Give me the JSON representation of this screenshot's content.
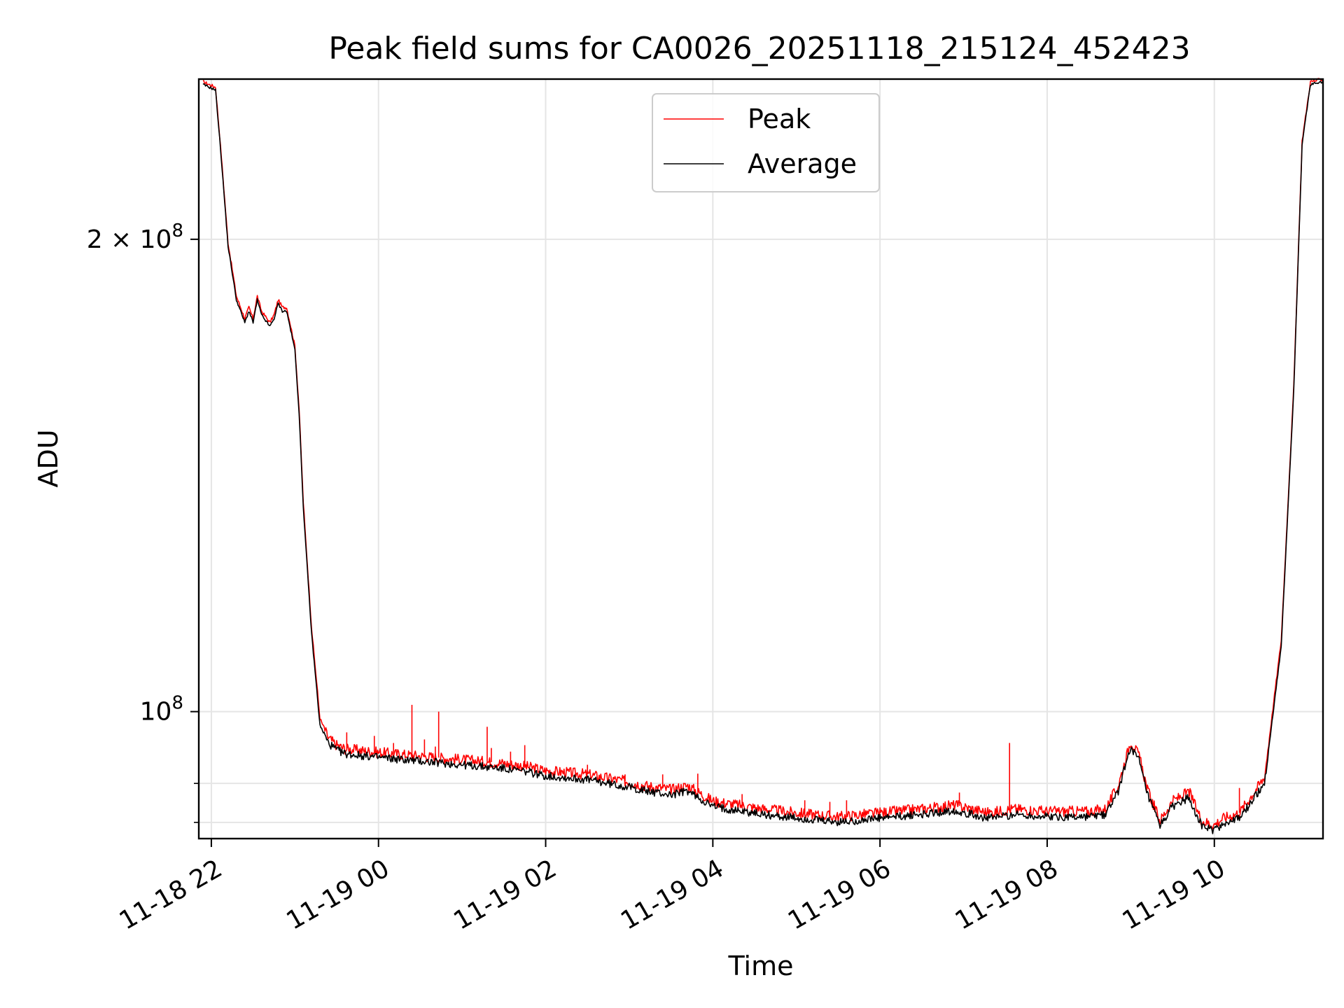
{
  "chart_data": {
    "type": "line",
    "title": "Peak field sums for CA0026_20251118_215124_452423",
    "xlabel": "Time",
    "ylabel": "ADU",
    "y_scale": "log",
    "xlim_hours": [
      -0.15,
      13.3
    ],
    "ylim": [
      83000000,
      253000000
    ],
    "x_ticks": [
      {
        "hour": 0,
        "label": "11-18 22"
      },
      {
        "hour": 2,
        "label": "11-19 00"
      },
      {
        "hour": 4,
        "label": "11-19 02"
      },
      {
        "hour": 6,
        "label": "11-19 04"
      },
      {
        "hour": 8,
        "label": "11-19 06"
      },
      {
        "hour": 10,
        "label": "11-19 08"
      },
      {
        "hour": 12,
        "label": "11-19 10"
      }
    ],
    "y_major_ticks": [
      {
        "value": 100000000,
        "base": "10",
        "exp": "8"
      },
      {
        "value": 200000000,
        "base": "2 × 10",
        "exp": "8"
      }
    ],
    "y_minor_ticks": [
      90000000,
      85000000
    ],
    "legend": {
      "position": "top-center",
      "entries": [
        "Peak",
        "Average"
      ]
    },
    "colors": {
      "peak": "#ff0000",
      "average": "#000000",
      "grid": "#e5e5e5"
    },
    "series": [
      {
        "name": "Average",
        "x_hours": [
          -0.1,
          0.05,
          0.12,
          0.2,
          0.3,
          0.4,
          0.45,
          0.5,
          0.55,
          0.6,
          0.7,
          0.75,
          0.8,
          0.85,
          0.9,
          0.95,
          1.0,
          1.05,
          1.1,
          1.2,
          1.3,
          1.4,
          1.5,
          1.6,
          2.0,
          2.5,
          3.0,
          3.5,
          3.8,
          4.0,
          4.5,
          5.0,
          5.2,
          5.5,
          5.7,
          6.0,
          6.3,
          6.6,
          7.0,
          7.5,
          8.0,
          8.5,
          8.9,
          9.3,
          9.6,
          10.0,
          10.5,
          10.7,
          10.85,
          11.0,
          11.1,
          11.2,
          11.35,
          11.5,
          11.7,
          11.85,
          12.0,
          12.1,
          12.3,
          12.6,
          12.8,
          12.95,
          13.05,
          13.15,
          13.3
        ],
        "values": [
          251000000,
          249000000,
          225000000,
          198000000,
          183000000,
          177000000,
          180000000,
          177000000,
          183000000,
          179000000,
          176000000,
          178000000,
          182000000,
          180000000,
          180000000,
          175000000,
          170000000,
          155000000,
          135000000,
          112000000,
          98000000,
          95500000,
          94500000,
          94000000,
          93500000,
          93000000,
          92500000,
          92000000,
          91500000,
          91000000,
          90500000,
          89500000,
          89000000,
          88500000,
          89000000,
          87000000,
          86500000,
          86000000,
          85500000,
          85000000,
          85500000,
          86000000,
          86500000,
          85500000,
          86000000,
          85700000,
          85700000,
          86000000,
          89000000,
          95000000,
          93000000,
          88500000,
          84500000,
          87000000,
          88200000,
          84500000,
          84000000,
          84800000,
          85500000,
          90000000,
          110000000,
          160000000,
          230000000,
          251000000,
          252000000
        ]
      },
      {
        "name": "Peak",
        "x_hours": [
          -0.1,
          0.05,
          0.12,
          0.2,
          0.3,
          0.4,
          0.45,
          0.5,
          0.55,
          0.6,
          0.7,
          0.75,
          0.8,
          0.85,
          0.9,
          0.95,
          1.0,
          1.05,
          1.1,
          1.2,
          1.3,
          1.4,
          1.5,
          1.6,
          2.0,
          2.5,
          3.0,
          3.5,
          3.8,
          4.0,
          4.5,
          5.0,
          5.2,
          5.5,
          5.7,
          6.0,
          6.3,
          6.6,
          7.0,
          7.5,
          8.0,
          8.5,
          8.9,
          9.3,
          9.6,
          10.0,
          10.5,
          10.7,
          10.85,
          11.0,
          11.1,
          11.2,
          11.35,
          11.5,
          11.7,
          11.85,
          12.0,
          12.1,
          12.3,
          12.6,
          12.8,
          12.95,
          13.05,
          13.15,
          13.3
        ],
        "values": [
          252000000,
          250000000,
          226000000,
          199000000,
          184000000,
          178000000,
          181000000,
          178000000,
          184000000,
          180000000,
          177000000,
          179000000,
          183000000,
          181000000,
          181000000,
          176000000,
          171000000,
          156000000,
          136000000,
          113000000,
          99000000,
          96200000,
          95200000,
          94700000,
          94200000,
          93700000,
          93200000,
          92700000,
          92200000,
          91700000,
          91200000,
          90200000,
          89700000,
          89200000,
          89700000,
          87700000,
          87200000,
          86700000,
          86200000,
          85700000,
          86200000,
          86700000,
          87200000,
          86200000,
          86700000,
          86400000,
          86400000,
          86700000,
          89700000,
          95800000,
          93700000,
          89200000,
          85200000,
          87700000,
          88900000,
          85200000,
          84700000,
          85500000,
          86200000,
          90800000,
          111000000,
          161000000,
          231000000,
          252000000,
          253000000
        ]
      }
    ],
    "peak_spikes": [
      {
        "hour": 1.62,
        "value": 97000000
      },
      {
        "hour": 1.95,
        "value": 96500000
      },
      {
        "hour": 2.18,
        "value": 95500000
      },
      {
        "hour": 2.4,
        "value": 101000000
      },
      {
        "hour": 2.55,
        "value": 96000000
      },
      {
        "hour": 2.68,
        "value": 95000000
      },
      {
        "hour": 2.72,
        "value": 100000000
      },
      {
        "hour": 3.3,
        "value": 97800000
      },
      {
        "hour": 3.35,
        "value": 94800000
      },
      {
        "hour": 3.58,
        "value": 94300000
      },
      {
        "hour": 3.75,
        "value": 95200000
      },
      {
        "hour": 4.5,
        "value": 92500000
      },
      {
        "hour": 4.95,
        "value": 91200000
      },
      {
        "hour": 5.4,
        "value": 91200000
      },
      {
        "hour": 5.82,
        "value": 91300000
      },
      {
        "hour": 6.35,
        "value": 88600000
      },
      {
        "hour": 7.1,
        "value": 87800000
      },
      {
        "hour": 7.4,
        "value": 87600000
      },
      {
        "hour": 7.6,
        "value": 87800000
      },
      {
        "hour": 8.95,
        "value": 88800000
      },
      {
        "hour": 9.55,
        "value": 95500000
      },
      {
        "hour": 12.3,
        "value": 89400000
      }
    ]
  }
}
